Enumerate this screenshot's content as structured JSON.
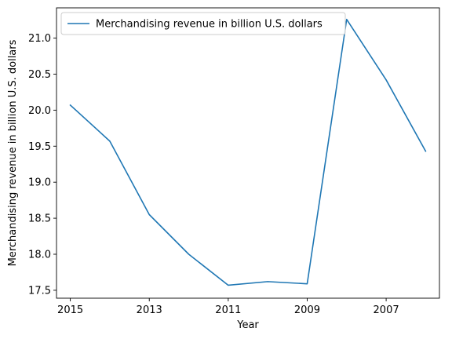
{
  "chart_data": {
    "type": "line",
    "title": "",
    "xlabel": "Year",
    "ylabel": "Merchandising revenue in billion U.S. dollars",
    "x": [
      2015,
      2014,
      2013,
      2012,
      2011,
      2010,
      2009,
      2008,
      2007,
      2006
    ],
    "x_reversed": true,
    "xlim": [
      2015.35,
      2005.65
    ],
    "xticks": [
      2015,
      2013,
      2011,
      2009,
      2007
    ],
    "xtick_labels": [
      "2015",
      "2013",
      "2011",
      "2009",
      "2007"
    ],
    "ylim": [
      17.39,
      21.42
    ],
    "yticks": [
      17.5,
      18.0,
      18.5,
      19.0,
      19.5,
      20.0,
      20.5,
      21.0
    ],
    "ytick_labels": [
      "17.5",
      "18.0",
      "18.5",
      "19.0",
      "19.5",
      "20.0",
      "20.5",
      "21.0"
    ],
    "grid": false,
    "legend_position": "top-left",
    "series": [
      {
        "name": "Merchandising revenue in billion U.S. dollars",
        "color": "#1f77b4",
        "values": [
          20.07,
          19.57,
          18.55,
          18.0,
          17.57,
          17.62,
          17.59,
          21.26,
          20.42,
          19.43
        ]
      }
    ]
  }
}
